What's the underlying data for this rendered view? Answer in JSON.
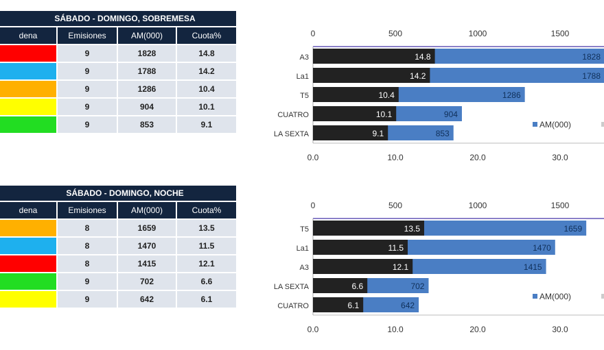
{
  "tables": [
    {
      "title": "SÁBADO - DOMINGO, SOBREMESA",
      "headers": [
        "dena",
        "Emisiones",
        "AM(000)",
        "Cuota%"
      ],
      "rows": [
        {
          "color": "#ff0000",
          "emisiones": "9",
          "am": "1828",
          "cuota": "14.8"
        },
        {
          "color": "#1eb0ee",
          "emisiones": "9",
          "am": "1788",
          "cuota": "14.2"
        },
        {
          "color": "#ffb000",
          "emisiones": "9",
          "am": "1286",
          "cuota": "10.4"
        },
        {
          "color": "#ffff00",
          "emisiones": "9",
          "am": "904",
          "cuota": "10.1"
        },
        {
          "color": "#22dd22",
          "emisiones": "9",
          "am": "853",
          "cuota": "9.1"
        }
      ]
    },
    {
      "title": "SÁBADO - DOMINGO, NOCHE",
      "headers": [
        "dena",
        "Emisiones",
        "AM(000)",
        "Cuota%"
      ],
      "rows": [
        {
          "color": "#ffb000",
          "emisiones": "8",
          "am": "1659",
          "cuota": "13.5"
        },
        {
          "color": "#1eb0ee",
          "emisiones": "8",
          "am": "1470",
          "cuota": "11.5"
        },
        {
          "color": "#ff0000",
          "emisiones": "8",
          "am": "1415",
          "cuota": "12.1"
        },
        {
          "color": "#22dd22",
          "emisiones": "9",
          "am": "702",
          "cuota": "6.6"
        },
        {
          "color": "#ffff00",
          "emisiones": "9",
          "am": "642",
          "cuota": "6.1"
        }
      ]
    }
  ],
  "chart_data": [
    {
      "type": "bar",
      "orientation": "horizontal",
      "categories": [
        "A3",
        "La1",
        "T5",
        "CUATRO",
        "LA SEXTA"
      ],
      "series": [
        {
          "name": "AM(000)",
          "axis": "top",
          "color": "#4a7ec4",
          "values": [
            1828,
            1788,
            1286,
            904,
            853
          ]
        },
        {
          "name": "Cuota%",
          "axis": "bottom",
          "color": "#222222",
          "values": [
            14.8,
            14.2,
            10.4,
            10.1,
            9.1
          ]
        }
      ],
      "top_ticks": [
        "0",
        "500",
        "1000",
        "1500"
      ],
      "bottom_ticks": [
        "0.0",
        "10.0",
        "20.0",
        "30.0"
      ],
      "top_range": [
        0,
        2000
      ],
      "bottom_range": [
        0,
        40
      ],
      "legend": "right",
      "legend_label": "AM(000)"
    },
    {
      "type": "bar",
      "orientation": "horizontal",
      "categories": [
        "T5",
        "La1",
        "A3",
        "LA SEXTA",
        "CUATRO"
      ],
      "series": [
        {
          "name": "AM(000)",
          "axis": "top",
          "color": "#4a7ec4",
          "values": [
            1659,
            1470,
            1415,
            702,
            642
          ]
        },
        {
          "name": "Cuota%",
          "axis": "bottom",
          "color": "#222222",
          "values": [
            13.5,
            11.5,
            12.1,
            6.6,
            6.1
          ]
        }
      ],
      "top_ticks": [
        "0",
        "500",
        "1000",
        "1500"
      ],
      "bottom_ticks": [
        "0.0",
        "10.0",
        "20.0",
        "30.0"
      ],
      "top_range": [
        0,
        2000
      ],
      "bottom_range": [
        0,
        40
      ],
      "legend": "right",
      "legend_label": "AM(000)"
    }
  ]
}
